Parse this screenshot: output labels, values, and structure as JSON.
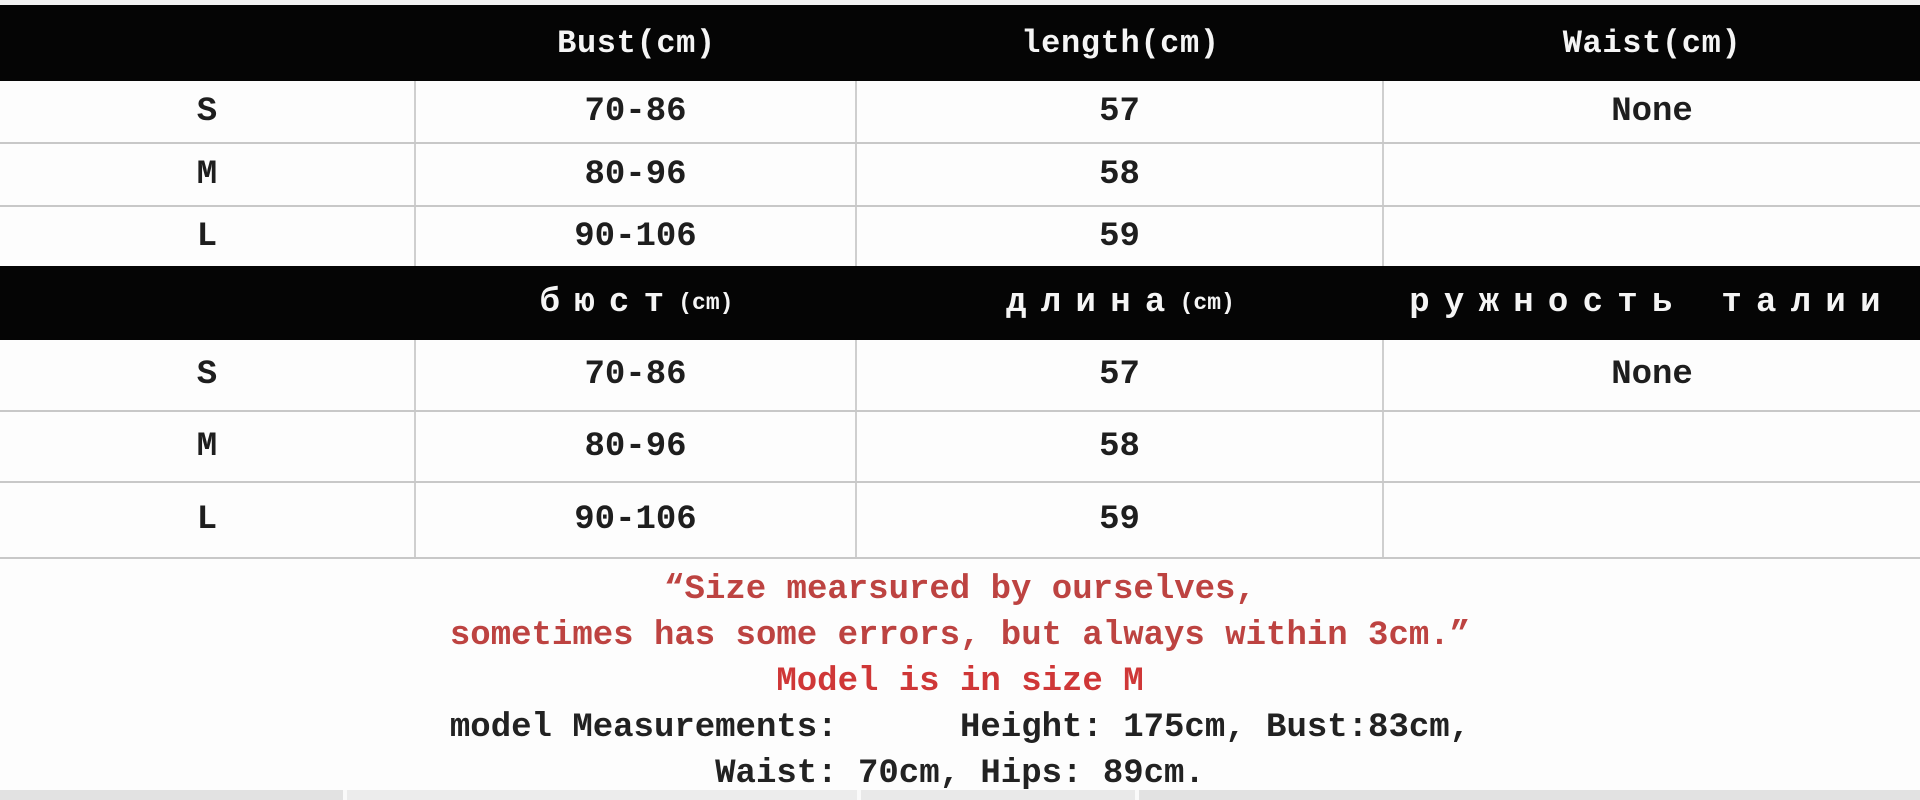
{
  "size_chart_en": {
    "columns": [
      "",
      "Bust(cm)",
      "length(cm)",
      "Waist(cm)"
    ],
    "rows": [
      [
        "S",
        "70-86",
        "57",
        "None"
      ],
      [
        "M",
        "80-96",
        "58",
        ""
      ],
      [
        "L",
        "90-106",
        "59",
        ""
      ]
    ]
  },
  "size_chart_ru": {
    "columns": [
      {
        "text": "",
        "unit": ""
      },
      {
        "text": "бюст",
        "unit": "(cm)"
      },
      {
        "text": "длина",
        "unit": "(cm)"
      },
      {
        "text": "ружность талии",
        "unit": ""
      }
    ],
    "rows": [
      [
        "S",
        "70-86",
        "57",
        "None"
      ],
      [
        "M",
        "80-96",
        "58",
        ""
      ],
      [
        "L",
        "90-106",
        "59",
        ""
      ]
    ]
  },
  "notes": {
    "line1": "“Size mearsured by ourselves,",
    "line2": "sometimes has some errors, but always within 3cm.”",
    "line3": "Model is in size M",
    "line4": "model Measurements:      Height: 175cm, Bust:83cm,",
    "line5": "Waist: 70cm, Hips: 89cm."
  },
  "colors": {
    "header_bg": "#050505",
    "accent_red": "#bd4341",
    "accent_red_bright": "#cf3737",
    "grid_line": "#c8c8c8"
  }
}
